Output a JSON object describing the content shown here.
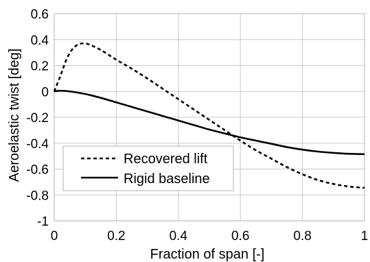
{
  "chart_data": {
    "type": "line",
    "title": "",
    "xlabel": "Fraction of span [-]",
    "ylabel": "Aeroelastic twist [deg]",
    "xlim": [
      0,
      1
    ],
    "ylim": [
      -1,
      0.6
    ],
    "x_ticks": [
      0,
      0.2,
      0.4,
      0.6,
      0.8,
      1
    ],
    "x_tick_labels": [
      "0",
      "0.2",
      "0.4",
      "0.6",
      "0.8",
      "1"
    ],
    "y_ticks": [
      0.6,
      0.4,
      0.2,
      0,
      -0.2,
      -0.4,
      -0.6,
      -0.8,
      -1
    ],
    "y_tick_labels": [
      "0.6",
      "0.4",
      "0.2",
      "0",
      "-0.2",
      "-0.4",
      "-0.6",
      "-0.8",
      "-1"
    ],
    "grid": true,
    "legend_position": "bottom-left",
    "series": [
      {
        "name": "Recovered lift",
        "style": "dashed",
        "color": "#000000",
        "x": [
          0,
          0.02,
          0.04,
          0.06,
          0.08,
          0.1,
          0.12,
          0.15,
          0.2,
          0.25,
          0.3,
          0.35,
          0.4,
          0.45,
          0.5,
          0.55,
          0.6,
          0.65,
          0.7,
          0.75,
          0.8,
          0.85,
          0.9,
          0.95,
          1
        ],
        "y": [
          0,
          0.12,
          0.25,
          0.33,
          0.365,
          0.37,
          0.355,
          0.32,
          0.245,
          0.175,
          0.1,
          0.02,
          -0.06,
          -0.14,
          -0.22,
          -0.3,
          -0.38,
          -0.455,
          -0.52,
          -0.585,
          -0.64,
          -0.685,
          -0.715,
          -0.735,
          -0.745
        ]
      },
      {
        "name": "Rigid baseline",
        "style": "solid",
        "color": "#000000",
        "x": [
          0,
          0.02,
          0.05,
          0.1,
          0.15,
          0.2,
          0.25,
          0.3,
          0.35,
          0.4,
          0.45,
          0.5,
          0.55,
          0.6,
          0.65,
          0.7,
          0.75,
          0.8,
          0.85,
          0.9,
          0.95,
          1
        ],
        "y": [
          0,
          0.005,
          0.0,
          -0.02,
          -0.05,
          -0.085,
          -0.12,
          -0.155,
          -0.19,
          -0.225,
          -0.26,
          -0.295,
          -0.325,
          -0.355,
          -0.38,
          -0.405,
          -0.43,
          -0.45,
          -0.465,
          -0.475,
          -0.482,
          -0.485
        ]
      }
    ]
  }
}
